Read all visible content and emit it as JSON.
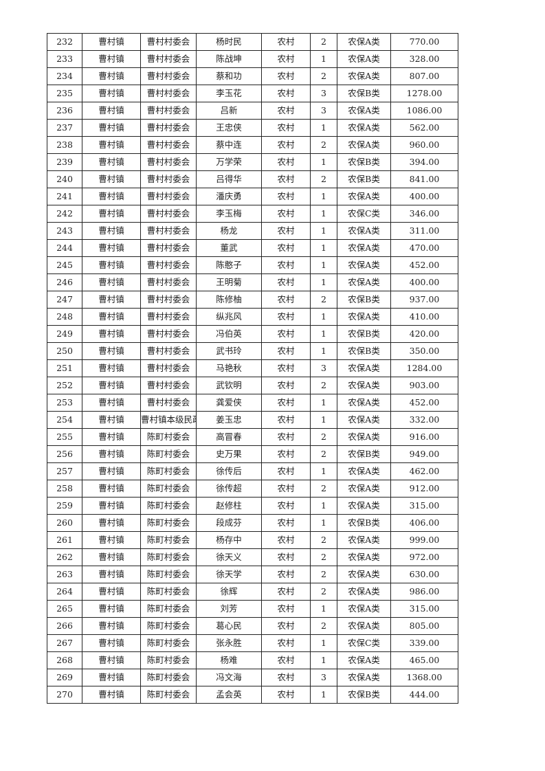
{
  "rows": [
    [
      "232",
      "曹村镇",
      "曹村村委会",
      "杨时民",
      "农村",
      "2",
      "农保A类",
      "770.00"
    ],
    [
      "233",
      "曹村镇",
      "曹村村委会",
      "陈战坤",
      "农村",
      "1",
      "农保A类",
      "328.00"
    ],
    [
      "234",
      "曹村镇",
      "曹村村委会",
      "蔡和功",
      "农村",
      "2",
      "农保A类",
      "807.00"
    ],
    [
      "235",
      "曹村镇",
      "曹村村委会",
      "李玉花",
      "农村",
      "3",
      "农保B类",
      "1278.00"
    ],
    [
      "236",
      "曹村镇",
      "曹村村委会",
      "吕新",
      "农村",
      "3",
      "农保A类",
      "1086.00"
    ],
    [
      "237",
      "曹村镇",
      "曹村村委会",
      "王忠侠",
      "农村",
      "1",
      "农保A类",
      "562.00"
    ],
    [
      "238",
      "曹村镇",
      "曹村村委会",
      "蔡中连",
      "农村",
      "2",
      "农保A类",
      "960.00"
    ],
    [
      "239",
      "曹村镇",
      "曹村村委会",
      "万学荣",
      "农村",
      "1",
      "农保B类",
      "394.00"
    ],
    [
      "240",
      "曹村镇",
      "曹村村委会",
      "吕得华",
      "农村",
      "2",
      "农保B类",
      "841.00"
    ],
    [
      "241",
      "曹村镇",
      "曹村村委会",
      "潘庆勇",
      "农村",
      "1",
      "农保A类",
      "400.00"
    ],
    [
      "242",
      "曹村镇",
      "曹村村委会",
      "李玉梅",
      "农村",
      "1",
      "农保C类",
      "346.00"
    ],
    [
      "243",
      "曹村镇",
      "曹村村委会",
      "杨龙",
      "农村",
      "1",
      "农保A类",
      "311.00"
    ],
    [
      "244",
      "曹村镇",
      "曹村村委会",
      "董武",
      "农村",
      "1",
      "农保A类",
      "470.00"
    ],
    [
      "245",
      "曹村镇",
      "曹村村委会",
      "陈憨子",
      "农村",
      "1",
      "农保A类",
      "452.00"
    ],
    [
      "246",
      "曹村镇",
      "曹村村委会",
      "王明菊",
      "农村",
      "1",
      "农保A类",
      "400.00"
    ],
    [
      "247",
      "曹村镇",
      "曹村村委会",
      "陈修柚",
      "农村",
      "2",
      "农保B类",
      "937.00"
    ],
    [
      "248",
      "曹村镇",
      "曹村村委会",
      "纵兆风",
      "农村",
      "1",
      "农保A类",
      "410.00"
    ],
    [
      "249",
      "曹村镇",
      "曹村村委会",
      "冯伯英",
      "农村",
      "1",
      "农保B类",
      "420.00"
    ],
    [
      "250",
      "曹村镇",
      "曹村村委会",
      "武书玲",
      "农村",
      "1",
      "农保B类",
      "350.00"
    ],
    [
      "251",
      "曹村镇",
      "曹村村委会",
      "马艳秋",
      "农村",
      "3",
      "农保A类",
      "1284.00"
    ],
    [
      "252",
      "曹村镇",
      "曹村村委会",
      "武钦明",
      "农村",
      "2",
      "农保A类",
      "903.00"
    ],
    [
      "253",
      "曹村镇",
      "曹村村委会",
      "龚爱侠",
      "农村",
      "1",
      "农保A类",
      "452.00"
    ],
    [
      "254",
      "曹村镇",
      "曹村镇本级民政",
      "姜玉忠",
      "农村",
      "1",
      "农保A类",
      "332.00"
    ],
    [
      "255",
      "曹村镇",
      "陈町村委会",
      "高冒春",
      "农村",
      "2",
      "农保A类",
      "916.00"
    ],
    [
      "256",
      "曹村镇",
      "陈町村委会",
      "史万果",
      "农村",
      "2",
      "农保B类",
      "949.00"
    ],
    [
      "257",
      "曹村镇",
      "陈町村委会",
      "徐传后",
      "农村",
      "1",
      "农保A类",
      "462.00"
    ],
    [
      "258",
      "曹村镇",
      "陈町村委会",
      "徐传超",
      "农村",
      "2",
      "农保A类",
      "912.00"
    ],
    [
      "259",
      "曹村镇",
      "陈町村委会",
      "赵修柱",
      "农村",
      "1",
      "农保A类",
      "315.00"
    ],
    [
      "260",
      "曹村镇",
      "陈町村委会",
      "段成芬",
      "农村",
      "1",
      "农保B类",
      "406.00"
    ],
    [
      "261",
      "曹村镇",
      "陈町村委会",
      "杨存中",
      "农村",
      "2",
      "农保A类",
      "999.00"
    ],
    [
      "262",
      "曹村镇",
      "陈町村委会",
      "徐天义",
      "农村",
      "2",
      "农保A类",
      "972.00"
    ],
    [
      "263",
      "曹村镇",
      "陈町村委会",
      "徐天学",
      "农村",
      "2",
      "农保A类",
      "630.00"
    ],
    [
      "264",
      "曹村镇",
      "陈町村委会",
      "徐辉",
      "农村",
      "2",
      "农保A类",
      "986.00"
    ],
    [
      "265",
      "曹村镇",
      "陈町村委会",
      "刘芳",
      "农村",
      "1",
      "农保A类",
      "315.00"
    ],
    [
      "266",
      "曹村镇",
      "陈町村委会",
      "葛心民",
      "农村",
      "2",
      "农保A类",
      "805.00"
    ],
    [
      "267",
      "曹村镇",
      "陈町村委会",
      "张永胜",
      "农村",
      "1",
      "农保C类",
      "339.00"
    ],
    [
      "268",
      "曹村镇",
      "陈町村委会",
      "杨难",
      "农村",
      "1",
      "农保A类",
      "465.00"
    ],
    [
      "269",
      "曹村镇",
      "陈町村委会",
      "冯文海",
      "农村",
      "3",
      "农保A类",
      "1368.00"
    ],
    [
      "270",
      "曹村镇",
      "陈町村委会",
      "孟会英",
      "农村",
      "1",
      "农保B类",
      "444.00"
    ]
  ]
}
